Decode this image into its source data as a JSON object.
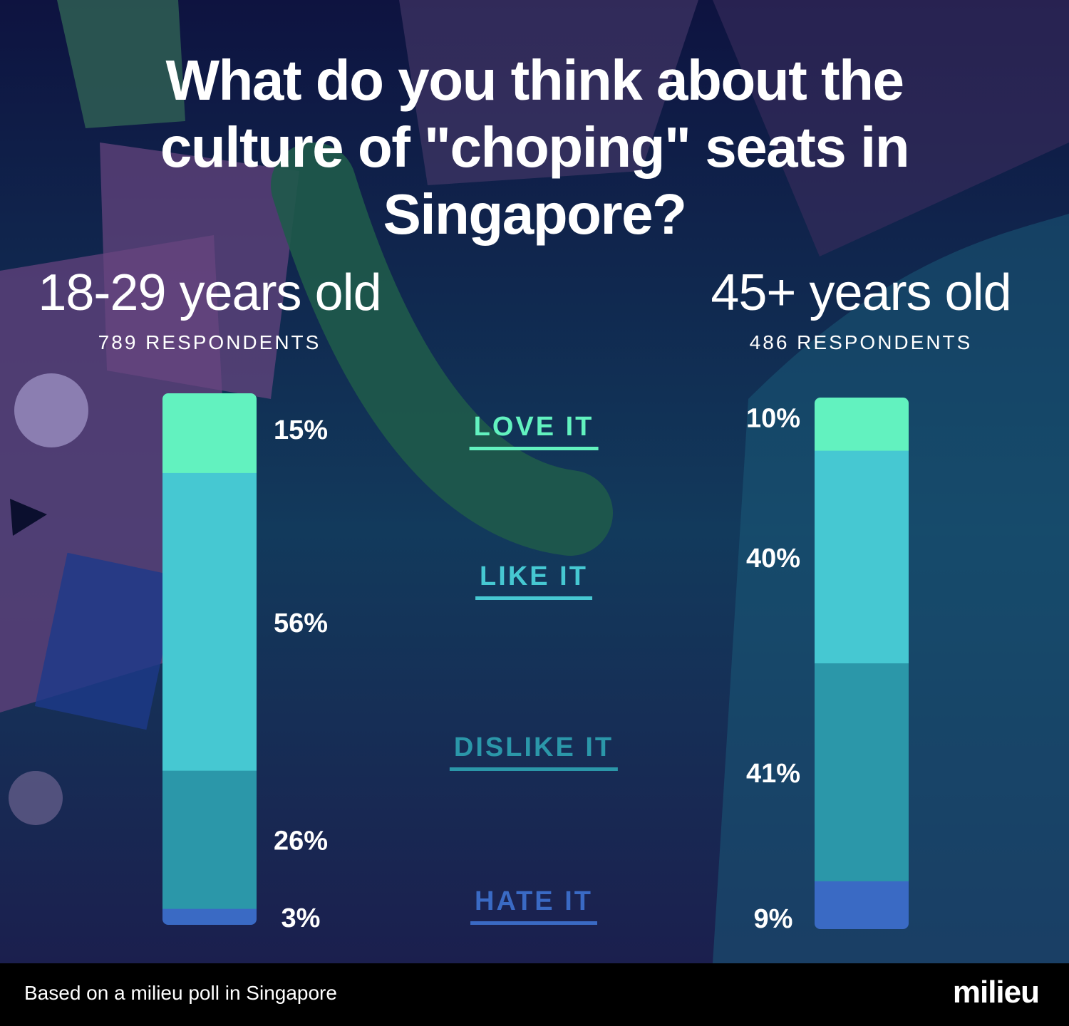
{
  "title": "What do you think about the culture of \"choping\" seats in Singapore?",
  "groups": [
    {
      "label": "18-29 years old",
      "respondents": "789 RESPONDENTS"
    },
    {
      "label": "45+ years old",
      "respondents": "486 RESPONDENTS"
    }
  ],
  "categories": [
    {
      "label": "LOVE IT",
      "color": "#62f2bf"
    },
    {
      "label": "LIKE IT",
      "color": "#46c8d2"
    },
    {
      "label": "DISLIKE IT",
      "color": "#2b97a9"
    },
    {
      "label": "HATE IT",
      "color": "#3a6ac4"
    }
  ],
  "chart_data": {
    "type": "bar",
    "stacked": true,
    "categories": [
      "18-29 years old",
      "45+ years old"
    ],
    "series": [
      {
        "name": "LOVE IT",
        "values": [
          15,
          10
        ],
        "labels": [
          "15%",
          "10%"
        ]
      },
      {
        "name": "LIKE IT",
        "values": [
          56,
          40
        ],
        "labels": [
          "56%",
          "40%"
        ]
      },
      {
        "name": "DISLIKE IT",
        "values": [
          26,
          41
        ],
        "labels": [
          "26%",
          "41%"
        ]
      },
      {
        "name": "HATE IT",
        "values": [
          3,
          9
        ],
        "labels": [
          "3%",
          "9%"
        ]
      }
    ],
    "unit": "%"
  },
  "footer": {
    "note": "Based on a milieu poll in Singapore",
    "logo": "milieu"
  }
}
